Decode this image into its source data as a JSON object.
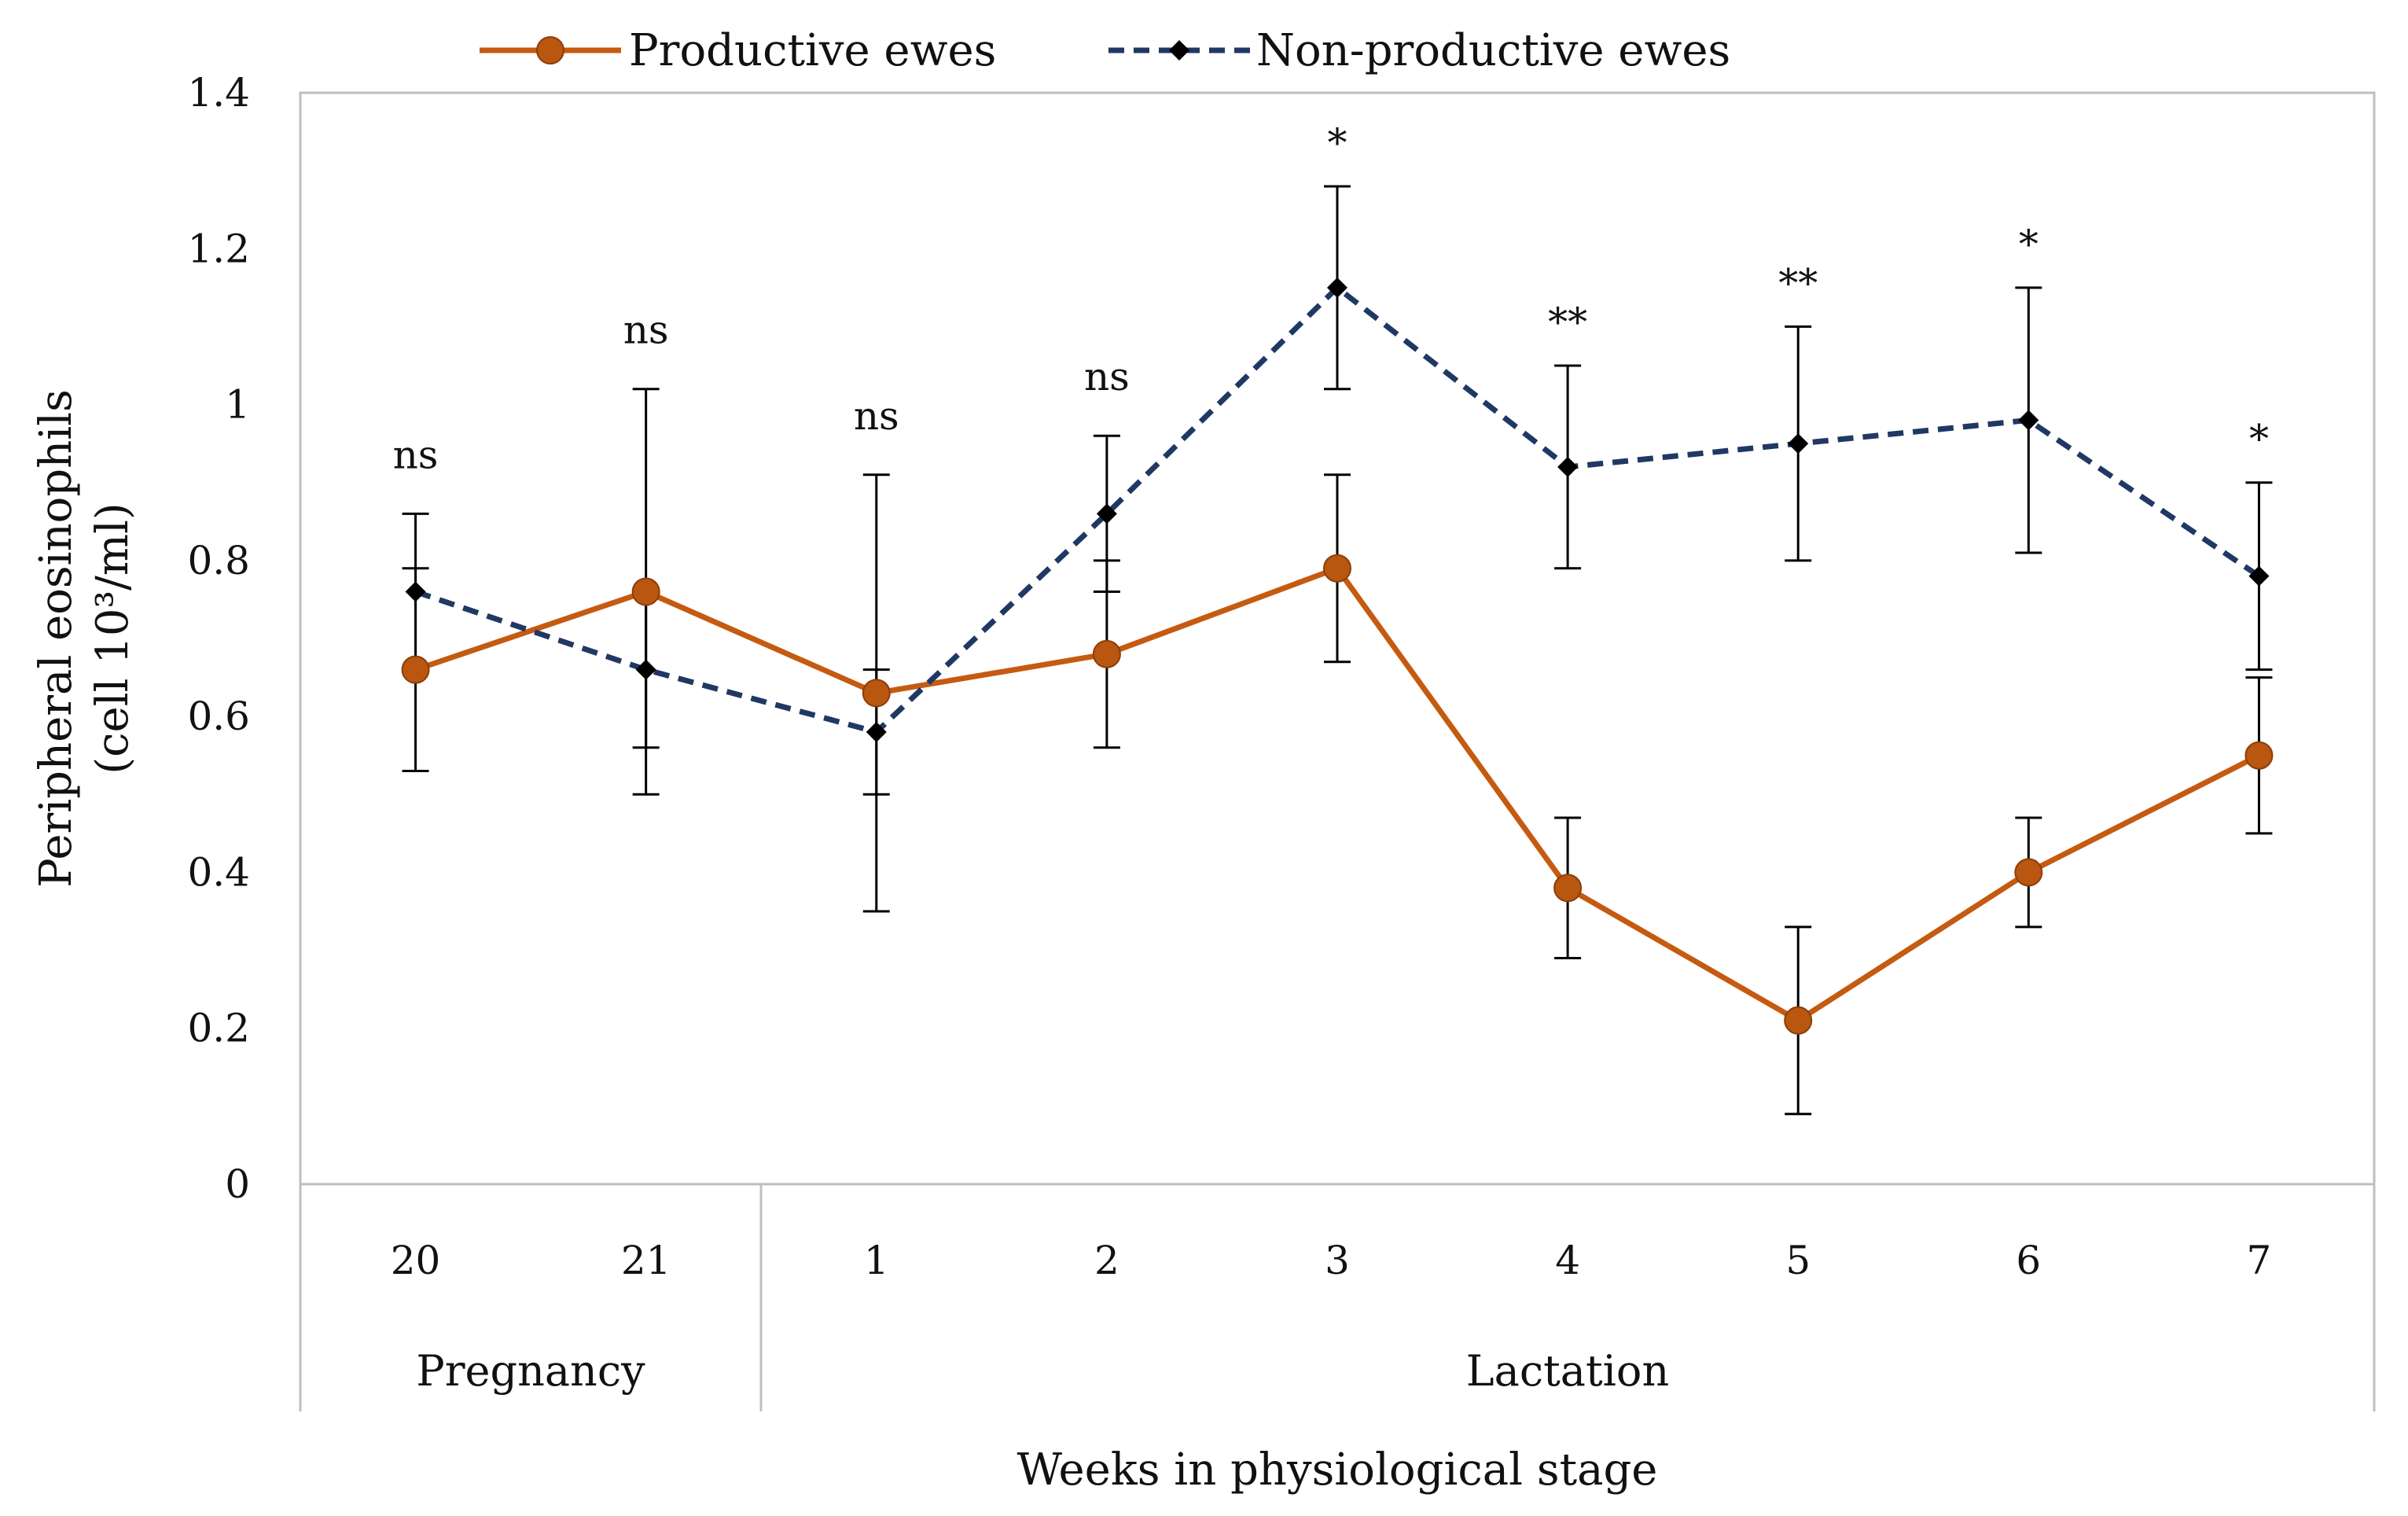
{
  "chart_data": {
    "type": "line",
    "title": "",
    "xlabel": "Weeks in physiological stage",
    "ylabel_line1": "Peripheral eosinophils",
    "ylabel_line2": "(cell 10³/ml)",
    "ylim": [
      0,
      1.4
    ],
    "yticks": [
      "0",
      "0.2",
      "0.4",
      "0.6",
      "0.8",
      "1",
      "1.2",
      "1.4"
    ],
    "categories": [
      "20",
      "21",
      "1",
      "2",
      "3",
      "4",
      "5",
      "6",
      "7"
    ],
    "groups": [
      {
        "label": "Pregnancy",
        "span": [
          0,
          1
        ]
      },
      {
        "label": "Lactation",
        "span": [
          2,
          8
        ]
      }
    ],
    "series": [
      {
        "name": "Productive ewes",
        "color": "#C55A11",
        "marker": "circle",
        "line_style": "solid",
        "values": [
          0.66,
          0.76,
          0.63,
          0.68,
          0.79,
          0.38,
          0.21,
          0.4,
          0.55
        ],
        "errors": [
          0.13,
          0.26,
          0.28,
          0.12,
          0.12,
          0.09,
          0.12,
          0.07,
          0.1
        ]
      },
      {
        "name": "Non-productive ewes",
        "color": "#203864",
        "marker": "diamond",
        "line_style": "dashed",
        "values": [
          0.76,
          0.66,
          0.58,
          0.86,
          1.15,
          0.92,
          0.95,
          0.98,
          0.78
        ],
        "errors": [
          0.1,
          0.1,
          0.08,
          0.1,
          0.13,
          0.13,
          0.15,
          0.17,
          0.12
        ]
      }
    ],
    "significance": [
      "ns",
      "ns",
      "ns",
      "ns",
      "*",
      "**",
      "**",
      "*",
      "*"
    ],
    "legend_position": "top"
  }
}
